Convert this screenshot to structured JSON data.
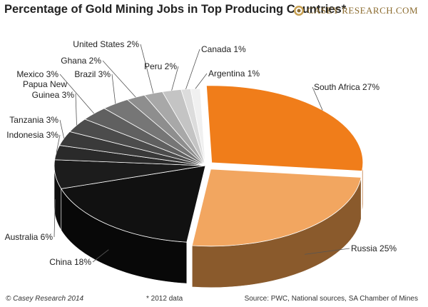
{
  "title": "Percentage of Gold Mining Jobs in Top Producing Countries*",
  "logo": {
    "text": "CASEY RESEARCH.COM",
    "icon": "casey-research-logo-icon"
  },
  "footer": {
    "left": "© Casey Research 2014",
    "note": "* 2012 data",
    "source": "Source: PWC, National sources, SA Chamber of Mines"
  },
  "chart_data": {
    "type": "pie",
    "style": "3d-exploded",
    "legend": "none",
    "slices": [
      {
        "label": "South Africa 27%",
        "value": 27,
        "color": "#f07d1a",
        "side": "#b05810"
      },
      {
        "label": "Russia 25%",
        "value": 25,
        "color": "#f2a660",
        "side": "#8a5a2c"
      },
      {
        "label": "China 18%",
        "value": 18,
        "color": "#111111",
        "side": "#080808"
      },
      {
        "label": "Australia 6%",
        "value": 6,
        "color": "#1c1c1c",
        "side": "#0e0e0e"
      },
      {
        "label": "Indonesia 3%",
        "value": 3,
        "color": "#2a2a2a",
        "side": "#171717"
      },
      {
        "label": "Tanzania 3%",
        "value": 3,
        "color": "#3a3a3a",
        "side": "#222222"
      },
      {
        "label": "Papua New Guinea 3%",
        "value": 3,
        "color": "#4c4c4c",
        "side": "#2c2c2c"
      },
      {
        "label": "Mexico 3%",
        "value": 3,
        "color": "#606060",
        "side": "#383838"
      },
      {
        "label": "Brazil 3%",
        "value": 3,
        "color": "#767676",
        "side": "#444444"
      },
      {
        "label": "Ghana 2%",
        "value": 2,
        "color": "#8e8e8e",
        "side": "#555555"
      },
      {
        "label": "United States 2%",
        "value": 2,
        "color": "#a8a8a8",
        "side": "#666666"
      },
      {
        "label": "Peru 2%",
        "value": 2,
        "color": "#c4c4c4",
        "side": "#7a7a7a"
      },
      {
        "label": "Canada 1%",
        "value": 1,
        "color": "#dcdcdc",
        "side": "#8e8e8e"
      },
      {
        "label": "Argentina 1%",
        "value": 1,
        "color": "#f0f0f0",
        "side": "#a6a6a6"
      }
    ]
  }
}
